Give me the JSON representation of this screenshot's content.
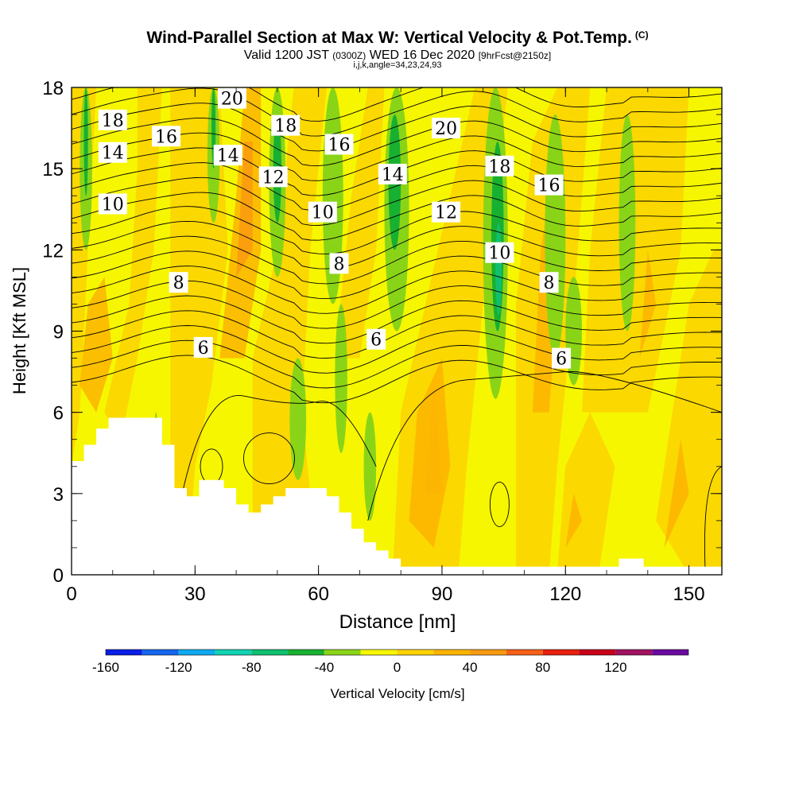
{
  "header": {
    "title": "Wind-Parallel Section at Max W: Vertical Velocity & Pot.Temp.",
    "copyright": "(C)",
    "valid_prefix": "Valid 1200 JST",
    "valid_zulu": "(0300Z)",
    "valid_date": "WED 16 Dec 2020",
    "forecast": "[9hrFcst@2150z]",
    "indices": "i,j,k,angle=34,23,24,93"
  },
  "chart_data": {
    "type": "heatmap",
    "xlabel": "Distance [nm]",
    "ylabel": "Height [Kft MSL]",
    "xlim": [
      0,
      158
    ],
    "ylim": [
      0,
      18
    ],
    "x_ticks": [
      "0",
      "30",
      "60",
      "90",
      "120",
      "150"
    ],
    "y_ticks": [
      "0",
      "3",
      "6",
      "9",
      "12",
      "15",
      "18"
    ],
    "field": "Vertical Velocity (shaded) and potential temperature (contours)",
    "contour_labels": [
      {
        "text": "18",
        "x": 10,
        "y": 16.8
      },
      {
        "text": "14",
        "x": 10,
        "y": 15.6
      },
      {
        "text": "10",
        "x": 10,
        "y": 13.7
      },
      {
        "text": "16",
        "x": 23,
        "y": 16.2
      },
      {
        "text": "20",
        "x": 39,
        "y": 17.6
      },
      {
        "text": "14",
        "x": 38,
        "y": 15.5
      },
      {
        "text": "18",
        "x": 52,
        "y": 16.6
      },
      {
        "text": "12",
        "x": 49,
        "y": 14.7
      },
      {
        "text": "16",
        "x": 65,
        "y": 15.9
      },
      {
        "text": "10",
        "x": 61,
        "y": 13.4
      },
      {
        "text": "8",
        "x": 65,
        "y": 11.5
      },
      {
        "text": "20",
        "x": 91,
        "y": 16.5
      },
      {
        "text": "14",
        "x": 78,
        "y": 14.8
      },
      {
        "text": "12",
        "x": 91,
        "y": 13.4
      },
      {
        "text": "18",
        "x": 104,
        "y": 15.1
      },
      {
        "text": "16",
        "x": 116,
        "y": 14.4
      },
      {
        "text": "10",
        "x": 104,
        "y": 11.9
      },
      {
        "text": "8",
        "x": 116,
        "y": 10.8
      },
      {
        "text": "8",
        "x": 26,
        "y": 10.8
      },
      {
        "text": "6",
        "x": 32,
        "y": 8.4
      },
      {
        "text": "6",
        "x": 74,
        "y": 8.7
      },
      {
        "text": "6",
        "x": 119,
        "y": 8.0
      }
    ],
    "colorbar": {
      "label": "Vertical Velocity [cm/s]",
      "tick_labels": [
        "-160",
        "-120",
        "-80",
        "-40",
        "0",
        "40",
        "80",
        "120"
      ],
      "tick_values": [
        -160,
        -120,
        -80,
        -40,
        0,
        40,
        80,
        120
      ],
      "bins": [
        {
          "from": -160,
          "to": -140,
          "color": "#0a1ee6"
        },
        {
          "from": -140,
          "to": -120,
          "color": "#1466ee"
        },
        {
          "from": -120,
          "to": -100,
          "color": "#10aaf0"
        },
        {
          "from": -100,
          "to": -80,
          "color": "#12d2b4"
        },
        {
          "from": -80,
          "to": -60,
          "color": "#10c070"
        },
        {
          "from": -60,
          "to": -40,
          "color": "#18b030"
        },
        {
          "from": -40,
          "to": -20,
          "color": "#8ad418"
        },
        {
          "from": -20,
          "to": 0,
          "color": "#f6f600"
        },
        {
          "from": 0,
          "to": 20,
          "color": "#fcd200"
        },
        {
          "from": 20,
          "to": 40,
          "color": "#fcb400"
        },
        {
          "from": 40,
          "to": 60,
          "color": "#fa9a10"
        },
        {
          "from": 60,
          "to": 80,
          "color": "#f66018"
        },
        {
          "from": 80,
          "to": 100,
          "color": "#e82010"
        },
        {
          "from": 100,
          "to": 120,
          "color": "#c8001a"
        },
        {
          "from": 120,
          "to": 140,
          "color": "#a01260"
        },
        {
          "from": 140,
          "to": 160,
          "color": "#6a0aa0"
        }
      ]
    }
  }
}
